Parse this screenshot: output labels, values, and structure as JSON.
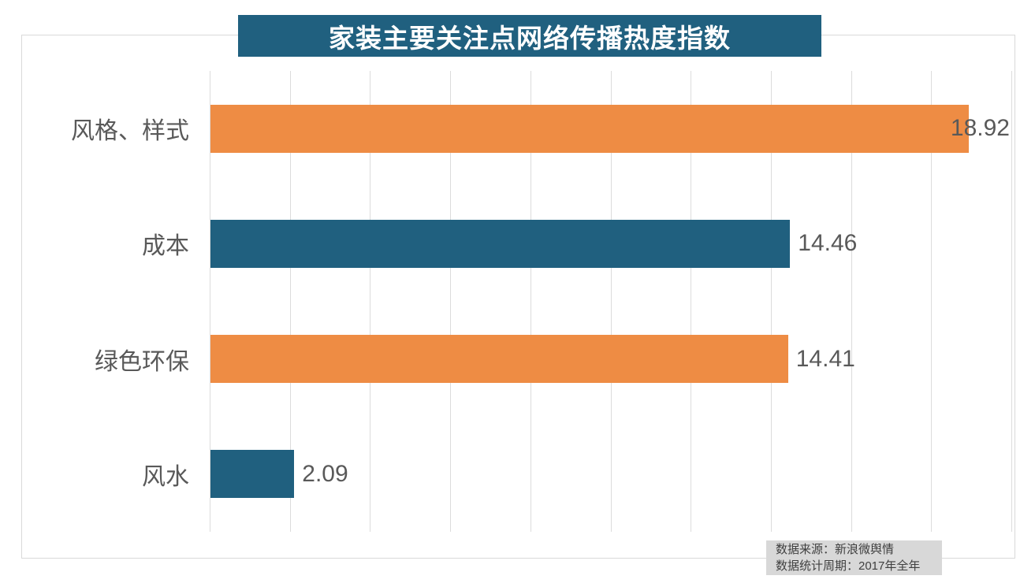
{
  "title": "家装主要关注点网络传播热度指数",
  "chart_data": {
    "type": "bar",
    "orientation": "horizontal",
    "title": "家装主要关注点网络传播热度指数",
    "categories": [
      "风格、样式",
      "成本",
      "绿色环保",
      "风水"
    ],
    "values": [
      18.92,
      14.46,
      14.41,
      2.09
    ],
    "value_labels": [
      "18.92",
      "14.46",
      "14.41",
      "2.09"
    ],
    "xlim": [
      0,
      20
    ],
    "gridline_interval": 2,
    "grid": true,
    "legend": false,
    "bar_colors": [
      "#ee8c44",
      "#20607f",
      "#ee8c44",
      "#20607f"
    ]
  },
  "colors": {
    "orange": "#ee8c44",
    "teal": "#20607f",
    "title_bg": "#20607f",
    "title_text": "#ffffff",
    "label_text": "#595959",
    "grid": "#dcdcdc",
    "frame_border": "#d9d9d9",
    "source_bg": "#d8d8d8",
    "source_text": "#3f3f3f"
  },
  "source": {
    "line1": "数据来源：新浪微舆情",
    "line2": "数据统计周期：2017年全年"
  }
}
